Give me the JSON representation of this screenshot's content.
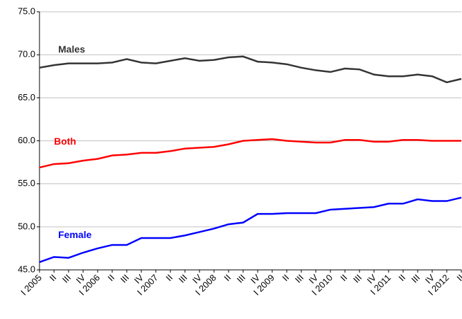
{
  "chart_data": {
    "type": "line",
    "categories": [
      "I 2005",
      "II",
      "III",
      "IV",
      "I 2006",
      "II",
      "III",
      "IV",
      "I 2007",
      "II",
      "III",
      "IV",
      "I 2008",
      "II",
      "III",
      "IV",
      "I 2009",
      "II",
      "III",
      "IV",
      "I 2010",
      "II",
      "III",
      "IV",
      "I 2011",
      "II",
      "III",
      "IV",
      "I 2012",
      "II"
    ],
    "series": [
      {
        "name": "Males",
        "color": "#333333",
        "values": [
          68.5,
          68.8,
          69.0,
          69.0,
          69.0,
          69.1,
          69.5,
          69.1,
          69.0,
          69.3,
          69.6,
          69.3,
          69.4,
          69.7,
          69.8,
          69.2,
          69.1,
          68.9,
          68.5,
          68.2,
          68.0,
          68.4,
          68.3,
          67.7,
          67.5,
          67.5,
          67.7,
          67.5,
          66.8,
          67.2
        ]
      },
      {
        "name": "Both",
        "color": "#ff0000",
        "values": [
          56.9,
          57.3,
          57.4,
          57.7,
          57.9,
          58.3,
          58.4,
          58.6,
          58.6,
          58.8,
          59.1,
          59.2,
          59.3,
          59.6,
          60.0,
          60.1,
          60.2,
          60.0,
          59.9,
          59.8,
          59.8,
          60.1,
          60.1,
          59.9,
          59.9,
          60.1,
          60.1,
          60.0,
          60.0,
          60.0
        ]
      },
      {
        "name": "Female",
        "color": "#0000ff",
        "values": [
          45.9,
          46.5,
          46.4,
          47.0,
          47.5,
          47.9,
          47.9,
          48.7,
          48.7,
          48.7,
          49.0,
          49.4,
          49.8,
          50.3,
          50.5,
          51.5,
          51.5,
          51.6,
          51.6,
          51.6,
          52.0,
          52.1,
          52.2,
          52.3,
          52.7,
          52.7,
          53.2,
          53.0,
          53.0,
          53.4
        ]
      }
    ],
    "ylim": [
      45,
      75
    ],
    "yticks": [
      {
        "value": 45,
        "label": "45.0"
      },
      {
        "value": 50,
        "label": "50.0"
      },
      {
        "value": 55,
        "label": "55.0"
      },
      {
        "value": 60,
        "label": "60.0"
      },
      {
        "value": 65,
        "label": "65.0"
      },
      {
        "value": 70,
        "label": "70.0"
      },
      {
        "value": 75,
        "label": "75.0"
      }
    ],
    "grid": true
  }
}
